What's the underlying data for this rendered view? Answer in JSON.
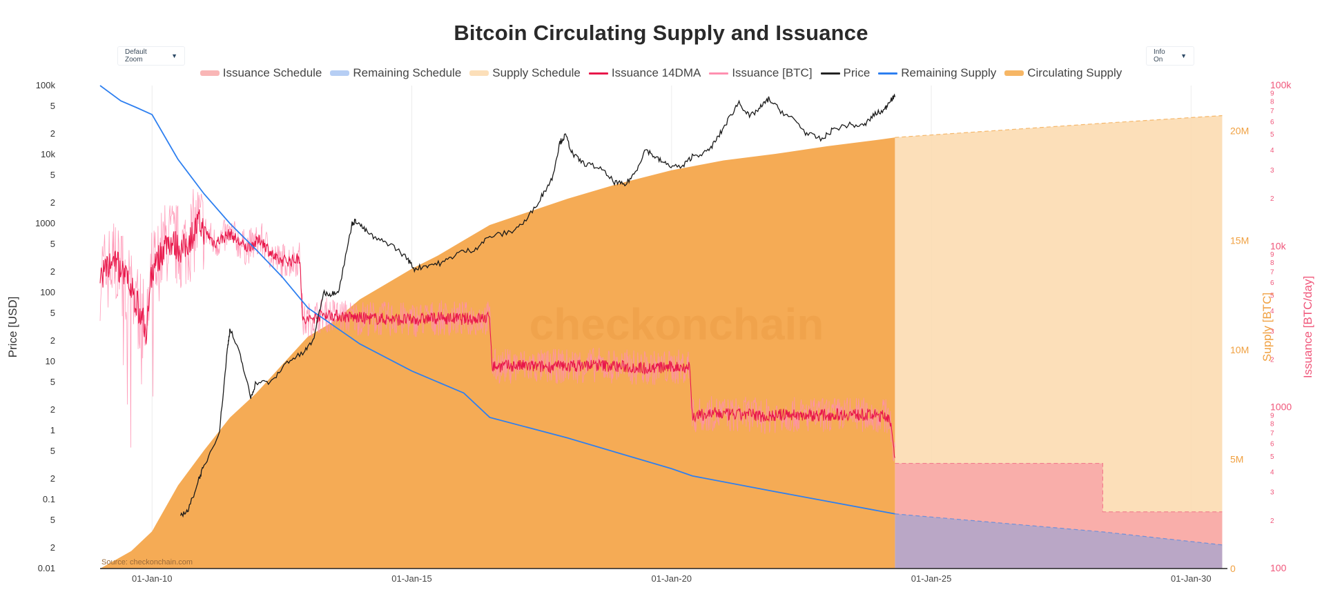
{
  "chart_data": {
    "type": "area",
    "title": "Bitcoin Circulating Supply and Issuance",
    "controls": {
      "zoom": "Default Zoom",
      "info": "Info On"
    },
    "source": "Source: checkonchain.com",
    "watermark": "checkonchain",
    "x_ticks": [
      "01-Jan-10",
      "01-Jan-15",
      "01-Jan-20",
      "01-Jan-25",
      "01-Jan-30"
    ],
    "y_left": {
      "label": "Price [USD]",
      "scale": "log",
      "range": [
        0.01,
        100000
      ],
      "ticks": [
        "0.01",
        "2",
        "5",
        "0.1",
        "2",
        "5",
        "1",
        "2",
        "5",
        "10",
        "2",
        "5",
        "100",
        "2",
        "5",
        "1000",
        "2",
        "5",
        "10k",
        "2",
        "5",
        "100k"
      ]
    },
    "y_supply": {
      "label": "Supply [BTC]",
      "range": [
        0,
        21000000
      ],
      "ticks": [
        "0",
        "5M",
        "10M",
        "15M",
        "20M"
      ]
    },
    "y_issuance": {
      "label": "Issuance [BTC/day]",
      "scale": "log",
      "range": [
        100,
        100000
      ],
      "ticks": [
        "100",
        "2",
        "3",
        "4",
        "5",
        "6",
        "7",
        "8",
        "9",
        "1000",
        "2",
        "3",
        "4",
        "5",
        "6",
        "7",
        "8",
        "9",
        "10k",
        "2",
        "3",
        "4",
        "5",
        "6",
        "7",
        "8",
        "9",
        "100k"
      ]
    },
    "legend": [
      {
        "name": "Issuance Schedule",
        "color": "#f8a9a9",
        "style": "area"
      },
      {
        "name": "Remaining Schedule",
        "color": "#a9c6f2",
        "style": "area"
      },
      {
        "name": "Supply Schedule",
        "color": "#fbd9ad",
        "style": "area"
      },
      {
        "name": "Issuance 14DMA",
        "color": "#e8174a",
        "style": "line"
      },
      {
        "name": "Issuance [BTC]",
        "color": "#ff8fb0",
        "style": "line"
      },
      {
        "name": "Price",
        "color": "#222222",
        "style": "line"
      },
      {
        "name": "Remaining Supply",
        "color": "#2d7ff0",
        "style": "line"
      },
      {
        "name": "Circulating Supply",
        "color": "#f5a94a",
        "style": "area"
      }
    ],
    "series": {
      "circulating_supply": {
        "name": "Circulating Supply",
        "x": [
          2009.0,
          2009.3,
          2009.6,
          2010.0,
          2010.5,
          2011.0,
          2011.5,
          2012.0,
          2012.5,
          2013.0,
          2013.5,
          2014.0,
          2014.5,
          2015.0,
          2015.5,
          2016.0,
          2016.5,
          2017.0,
          2018.0,
          2019.0,
          2020.0,
          2020.4,
          2021.0,
          2022.0,
          2023.0,
          2024.0,
          2024.3
        ],
        "y": [
          0,
          400000,
          800000,
          1700000,
          3800000,
          5400000,
          6900000,
          8000000,
          9300000,
          10600000,
          11300000,
          12300000,
          13000000,
          13700000,
          14300000,
          15000000,
          15700000,
          16100000,
          16900000,
          17600000,
          18200000,
          18380000,
          18650000,
          18950000,
          19300000,
          19600000,
          19700000
        ]
      },
      "supply_schedule": {
        "name": "Supply Schedule",
        "x": [
          2024.3,
          2028.3,
          2030.6
        ],
        "y": [
          19700000,
          20350000,
          20700000
        ]
      },
      "remaining_supply": {
        "name": "Remaining Supply",
        "x": [
          2009.0,
          2009.4,
          2009.7,
          2010.0,
          2010.5,
          2011.0,
          2011.5,
          2012.0,
          2012.5,
          2013.0,
          2014.0,
          2015.0,
          2016.0,
          2016.5,
          2018.0,
          2020.0,
          2020.4,
          2022.0,
          2024.3
        ],
        "y": [
          100000,
          60000,
          48000,
          38000,
          8500,
          2700,
          1000,
          420,
          170,
          60,
          18,
          7.3,
          3.5,
          1.55,
          0.78,
          0.28,
          0.22,
          0.13,
          0.062
        ]
      },
      "remaining_schedule": {
        "name": "Remaining Schedule",
        "x": [
          2024.3,
          2028.3,
          2030.6
        ],
        "y": [
          0.062,
          0.034,
          0.022
        ]
      },
      "price": {
        "name": "Price",
        "x": [
          2010.55,
          2010.7,
          2010.9,
          2011.0,
          2011.3,
          2011.45,
          2011.5,
          2011.7,
          2011.9,
          2012.0,
          2012.3,
          2012.6,
          2012.9,
          2013.1,
          2013.3,
          2013.45,
          2013.6,
          2013.85,
          2013.93,
          2014.1,
          2014.3,
          2014.6,
          2014.9,
          2015.05,
          2015.3,
          2015.6,
          2015.9,
          2016.2,
          2016.5,
          2016.9,
          2017.2,
          2017.5,
          2017.7,
          2017.85,
          2017.96,
          2018.1,
          2018.3,
          2018.6,
          2018.9,
          2019.1,
          2019.3,
          2019.5,
          2019.7,
          2019.9,
          2020.2,
          2020.4,
          2020.7,
          2020.9,
          2021.1,
          2021.3,
          2021.5,
          2021.7,
          2021.87,
          2022.1,
          2022.4,
          2022.6,
          2022.9,
          2023.1,
          2023.4,
          2023.7,
          2023.9,
          2024.1,
          2024.2,
          2024.3
        ],
        "y": [
          0.06,
          0.07,
          0.2,
          0.3,
          1.0,
          15,
          30,
          12,
          3,
          5,
          5,
          10,
          13,
          20,
          100,
          95,
          110,
          1000,
          1100,
          800,
          600,
          500,
          320,
          220,
          250,
          270,
          380,
          420,
          650,
          750,
          1100,
          2500,
          4500,
          15000,
          19000,
          10000,
          7500,
          6500,
          4000,
          3600,
          5500,
          12000,
          9000,
          7200,
          6500,
          9500,
          11000,
          18000,
          33000,
          58000,
          35000,
          47000,
          64000,
          43000,
          30000,
          20000,
          16500,
          23000,
          27000,
          26000,
          38000,
          44000,
          62000,
          68000
        ]
      },
      "issuance_14dma": {
        "name": "Issuance 14DMA",
        "x": [
          2009.0,
          2009.3,
          2009.6,
          2009.9,
          2010.0,
          2010.3,
          2010.6,
          2010.9,
          2011.2,
          2011.5,
          2011.8,
          2012.1,
          2012.4,
          2012.7,
          2012.85,
          2012.9,
          2013.3,
          2013.6,
          2014.0,
          2014.5,
          2015.0,
          2015.5,
          2016.0,
          2016.5,
          2016.55,
          2017.0,
          2017.5,
          2018.0,
          2018.5,
          2019.0,
          2019.5,
          2020.0,
          2020.35,
          2020.4,
          2020.8,
          2021.2,
          2021.5,
          2021.8,
          2022.2,
          2022.6,
          2023.0,
          2023.4,
          2023.8,
          2024.2,
          2024.3
        ],
        "y": [
          6500,
          8200,
          5500,
          3000,
          7000,
          11000,
          9500,
          14000,
          10500,
          12000,
          9800,
          11000,
          8200,
          8200,
          8500,
          3400,
          3800,
          3700,
          3600,
          3550,
          3500,
          3600,
          3550,
          3600,
          1800,
          1820,
          1790,
          1810,
          1840,
          1800,
          1760,
          1780,
          1800,
          880,
          920,
          900,
          910,
          880,
          905,
          895,
          900,
          910,
          900,
          880,
          450
        ]
      },
      "issuance_schedule": {
        "name": "Issuance Schedule",
        "x": [
          2024.3,
          2028.3,
          2028.3,
          2030.6
        ],
        "y": [
          450,
          450,
          225,
          225
        ]
      }
    }
  }
}
